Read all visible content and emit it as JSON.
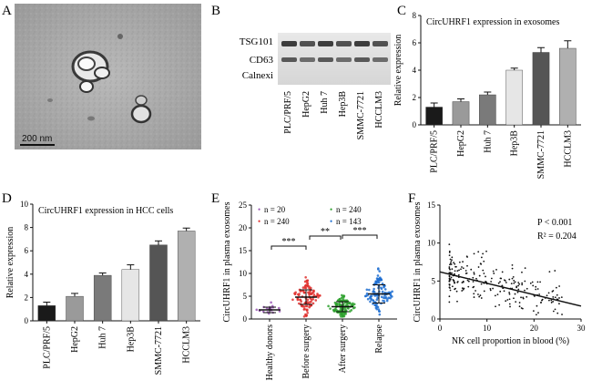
{
  "panels": {
    "A": {
      "letter": "A",
      "scale_label": "200 nm"
    },
    "B": {
      "letter": "B",
      "bands": [
        "TSG101",
        "CD63",
        "Calnexi"
      ],
      "lanes": [
        "PLC/PRF/5",
        "HepG2",
        "Huh 7",
        "Hep3B",
        "SMMC-7721",
        "HCCLM3"
      ]
    },
    "C": {
      "letter": "C"
    },
    "D": {
      "letter": "D"
    },
    "E": {
      "letter": "E",
      "legend": [
        "n = 20",
        "n = 240",
        "n = 240",
        "n = 143"
      ],
      "significance": [
        "***",
        "**",
        "***"
      ]
    },
    "F": {
      "letter": "F",
      "p_text": "P < 0.001",
      "r2_text": "R² = 0.204"
    }
  },
  "chart_data": [
    {
      "id": "C",
      "type": "bar",
      "title": "CircUHRF1 expression in exosomes",
      "categories": [
        "PLC/PRF/5",
        "HepG2",
        "Huh 7",
        "Hep3B",
        "SMMC-7721",
        "HCCLM3"
      ],
      "values": [
        1.3,
        1.7,
        2.2,
        4.0,
        5.3,
        5.6
      ],
      "errors": [
        0.3,
        0.2,
        0.2,
        0.15,
        0.35,
        0.55
      ],
      "colors": [
        "#1a1a1a",
        "#9a9a9a",
        "#7a7a7a",
        "#e6e6e6",
        "#555555",
        "#b0b0b0"
      ],
      "ylabel": "Relative expression",
      "ylim": [
        0,
        8
      ],
      "yticks": [
        0,
        2,
        4,
        6,
        8
      ]
    },
    {
      "id": "D",
      "type": "bar",
      "title": "CircUHRF1 expression in HCC cells",
      "categories": [
        "PLC/PRF/5",
        "HepG2",
        "Huh 7",
        "Hep3B",
        "SMMC-7721",
        "HCCLM3"
      ],
      "values": [
        1.3,
        2.1,
        3.9,
        4.4,
        6.5,
        7.7
      ],
      "errors": [
        0.3,
        0.25,
        0.2,
        0.4,
        0.35,
        0.25
      ],
      "colors": [
        "#1a1a1a",
        "#9a9a9a",
        "#7a7a7a",
        "#e6e6e6",
        "#555555",
        "#b0b0b0"
      ],
      "ylabel": "Relative expression",
      "ylim": [
        0,
        10
      ],
      "yticks": [
        0,
        2,
        4,
        6,
        8,
        10
      ]
    },
    {
      "id": "E",
      "type": "scatter",
      "categories": [
        "Healthy donors",
        "Before surgery",
        "After surgery",
        "Relapse"
      ],
      "n": [
        20,
        240,
        240,
        143
      ],
      "means": [
        2.0,
        4.8,
        2.7,
        5.5
      ],
      "sds": [
        0.6,
        1.6,
        1.1,
        2.0
      ],
      "colors": [
        "#9b59b6",
        "#e0312f",
        "#2ca02c",
        "#1f6fd1"
      ],
      "ylabel": "CircUHRF1 in plasma exosomes",
      "ylim": [
        0,
        25
      ],
      "yticks": [
        0,
        5,
        10,
        15,
        20,
        25
      ]
    },
    {
      "id": "F",
      "type": "scatter",
      "xlabel": "NK cell proportion in blood (%)",
      "ylabel": "CircUHRF1 in plasma exosomes",
      "xlim": [
        0,
        30
      ],
      "ylim": [
        0,
        15
      ],
      "xticks": [
        0,
        10,
        20,
        30
      ],
      "yticks": [
        0,
        5,
        10,
        15
      ],
      "regression": {
        "intercept": 6.2,
        "slope": -0.15
      },
      "n_points": 240
    }
  ]
}
